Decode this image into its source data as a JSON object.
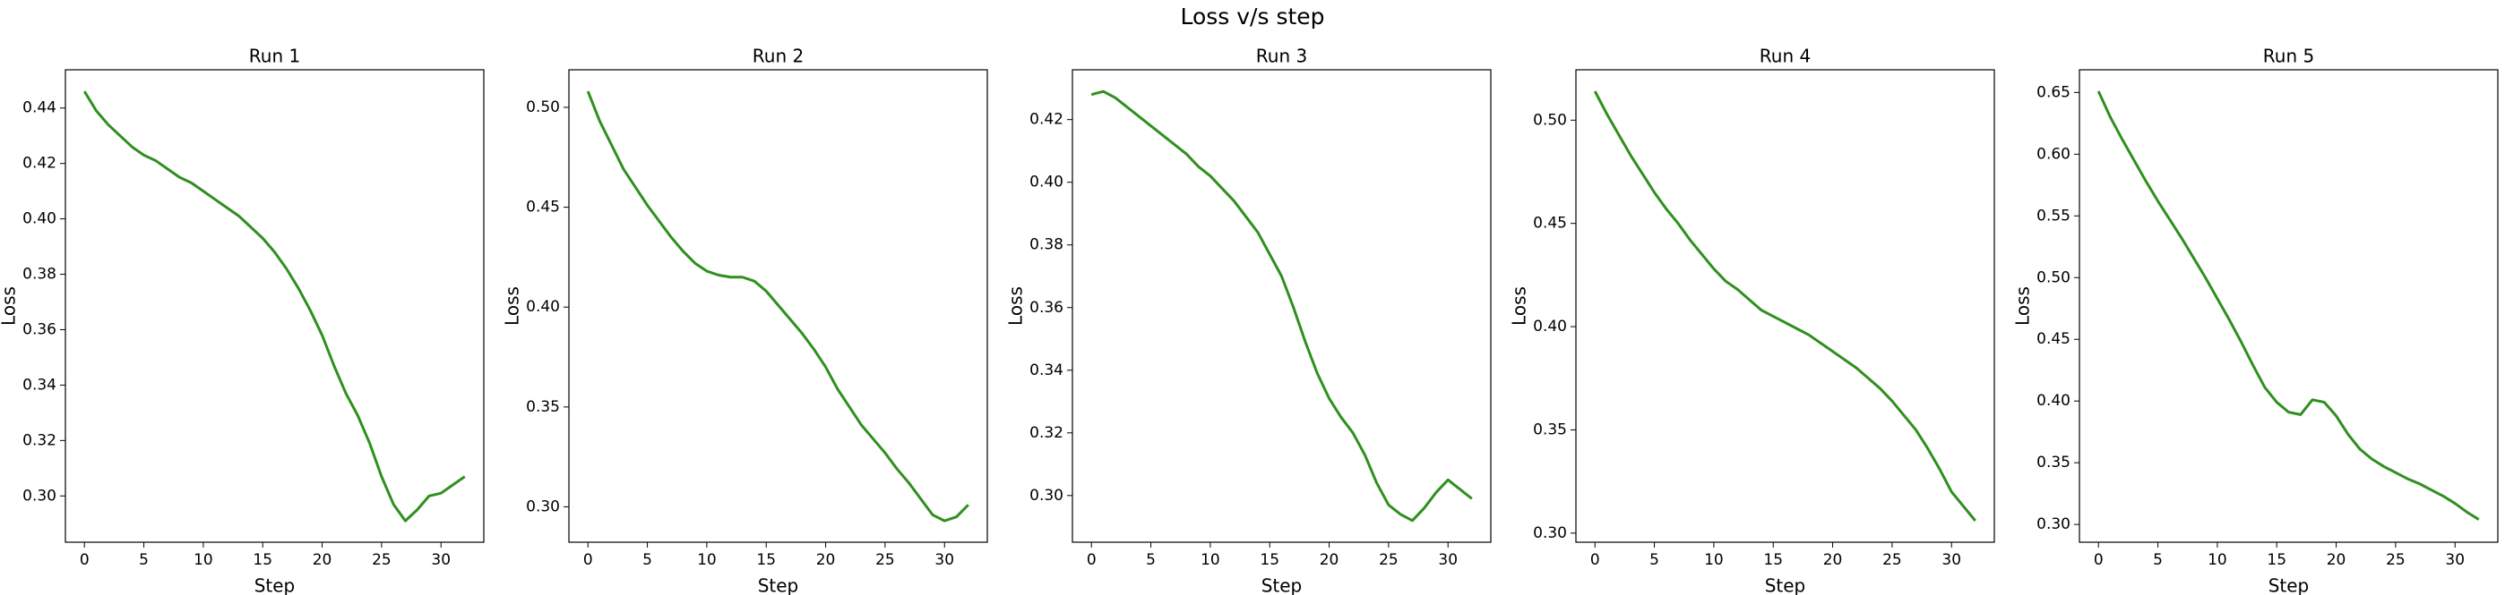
{
  "title": "Loss v/s step",
  "chart_data": [
    {
      "type": "line",
      "title": "Run 1",
      "xlabel": "Step",
      "ylabel": "Loss",
      "x": [
        0,
        1,
        2,
        3,
        4,
        5,
        6,
        7,
        8,
        9,
        10,
        11,
        12,
        13,
        14,
        15,
        16,
        17,
        18,
        19,
        20,
        21,
        22,
        23,
        24,
        25,
        26,
        27,
        28,
        29,
        30,
        31,
        32
      ],
      "series": [
        {
          "color": "#2f8f1f",
          "values": [
            0.446,
            0.439,
            0.434,
            0.43,
            0.426,
            0.423,
            0.421,
            0.418,
            0.415,
            0.413,
            0.41,
            0.407,
            0.404,
            0.401,
            0.397,
            0.393,
            0.388,
            0.382,
            0.375,
            0.367,
            0.358,
            0.347,
            0.337,
            0.329,
            0.319,
            0.307,
            0.297,
            0.291,
            0.295,
            0.3,
            0.301,
            0.304,
            0.307
          ]
        }
      ],
      "xlim": [
        -1.6,
        33.6
      ],
      "xticks": [
        0,
        5,
        10,
        15,
        20,
        25,
        30
      ],
      "ylim": [
        0.2833,
        0.4538
      ],
      "yticks": [
        {
          "value": 0.3,
          "label": "0.30"
        },
        0.32,
        0.34,
        0.36,
        0.38,
        {
          "value": 0.4,
          "label": "0.40"
        },
        0.42,
        0.44
      ]
    },
    {
      "type": "line",
      "title": "Run 2",
      "xlabel": "Step",
      "ylabel": "Loss",
      "x": [
        0,
        1,
        2,
        3,
        4,
        5,
        6,
        7,
        8,
        9,
        10,
        11,
        12,
        13,
        14,
        15,
        16,
        17,
        18,
        19,
        20,
        21,
        22,
        23,
        24,
        25,
        26,
        27,
        28,
        29,
        30,
        31,
        32
      ],
      "series": [
        {
          "color": "#2f8f1f",
          "values": [
            0.508,
            0.493,
            0.481,
            0.469,
            0.46,
            0.451,
            0.443,
            0.435,
            0.428,
            0.422,
            0.418,
            0.416,
            0.415,
            0.415,
            0.413,
            0.408,
            0.401,
            0.394,
            0.387,
            0.379,
            0.37,
            0.359,
            0.35,
            0.341,
            0.334,
            0.327,
            0.319,
            0.312,
            0.304,
            0.296,
            0.293,
            0.295,
            0.301
          ]
        }
      ],
      "xlim": [
        -1.6,
        33.6
      ],
      "xticks": [
        0,
        5,
        10,
        15,
        20,
        25,
        30
      ],
      "ylim": [
        0.2823,
        0.5188
      ],
      "yticks": [
        {
          "value": 0.3,
          "label": "0.30"
        },
        0.35,
        {
          "value": 0.4,
          "label": "0.40"
        },
        0.45,
        {
          "value": 0.5,
          "label": "0.50"
        }
      ]
    },
    {
      "type": "line",
      "title": "Run 3",
      "xlabel": "Step",
      "ylabel": "Loss",
      "x": [
        0,
        1,
        2,
        3,
        4,
        5,
        6,
        7,
        8,
        9,
        10,
        11,
        12,
        13,
        14,
        15,
        16,
        17,
        18,
        19,
        20,
        21,
        22,
        23,
        24,
        25,
        26,
        27,
        28,
        29,
        30,
        31,
        32
      ],
      "series": [
        {
          "color": "#2f8f1f",
          "values": [
            0.428,
            0.429,
            0.427,
            0.424,
            0.421,
            0.418,
            0.415,
            0.412,
            0.409,
            0.405,
            0.402,
            0.398,
            0.394,
            0.389,
            0.384,
            0.377,
            0.37,
            0.36,
            0.349,
            0.339,
            0.331,
            0.325,
            0.32,
            0.313,
            0.304,
            0.297,
            0.294,
            0.292,
            0.296,
            0.301,
            0.305,
            0.302,
            0.299
          ]
        }
      ],
      "xlim": [
        -1.6,
        33.6
      ],
      "xticks": [
        0,
        5,
        10,
        15,
        20,
        25,
        30
      ],
      "ylim": [
        0.2851,
        0.4359
      ],
      "yticks": [
        {
          "value": 0.3,
          "label": "0.30"
        },
        0.32,
        0.34,
        0.36,
        0.38,
        {
          "value": 0.4,
          "label": "0.40"
        },
        0.42
      ]
    },
    {
      "type": "line",
      "title": "Run 4",
      "xlabel": "Step",
      "ylabel": "Loss",
      "x": [
        0,
        1,
        2,
        3,
        4,
        5,
        6,
        7,
        8,
        9,
        10,
        11,
        12,
        13,
        14,
        15,
        16,
        17,
        18,
        19,
        20,
        21,
        22,
        23,
        24,
        25,
        26,
        27,
        28,
        29,
        30,
        31,
        32
      ],
      "series": [
        {
          "color": "#2f8f1f",
          "values": [
            0.514,
            0.503,
            0.493,
            0.483,
            0.474,
            0.465,
            0.457,
            0.45,
            0.442,
            0.435,
            0.428,
            0.422,
            0.418,
            0.413,
            0.408,
            0.405,
            0.402,
            0.399,
            0.396,
            0.392,
            0.388,
            0.384,
            0.38,
            0.375,
            0.37,
            0.364,
            0.357,
            0.35,
            0.341,
            0.331,
            0.32,
            0.313,
            0.306
          ]
        }
      ],
      "xlim": [
        -1.6,
        33.6
      ],
      "xticks": [
        0,
        5,
        10,
        15,
        20,
        25,
        30
      ],
      "ylim": [
        0.2956,
        0.5244
      ],
      "yticks": [
        {
          "value": 0.3,
          "label": "0.30"
        },
        0.35,
        {
          "value": 0.4,
          "label": "0.40"
        },
        0.45,
        {
          "value": 0.5,
          "label": "0.50"
        }
      ]
    },
    {
      "type": "line",
      "title": "Run 5",
      "xlabel": "Step",
      "ylabel": "Loss",
      "x": [
        0,
        1,
        2,
        3,
        4,
        5,
        6,
        7,
        8,
        9,
        10,
        11,
        12,
        13,
        14,
        15,
        16,
        17,
        18,
        19,
        20,
        21,
        22,
        23,
        24,
        25,
        26,
        27,
        28,
        29,
        30,
        31,
        32
      ],
      "series": [
        {
          "color": "#2f8f1f",
          "values": [
            0.651,
            0.63,
            0.612,
            0.595,
            0.578,
            0.562,
            0.547,
            0.532,
            0.516,
            0.5,
            0.483,
            0.466,
            0.448,
            0.429,
            0.411,
            0.399,
            0.391,
            0.389,
            0.401,
            0.399,
            0.388,
            0.373,
            0.361,
            0.353,
            0.347,
            0.342,
            0.337,
            0.333,
            0.328,
            0.323,
            0.317,
            0.31,
            0.304
          ]
        }
      ],
      "xlim": [
        -1.6,
        33.6
      ],
      "xticks": [
        0,
        5,
        10,
        15,
        20,
        25,
        30
      ],
      "ylim": [
        0.2856,
        0.6684
      ],
      "yticks": [
        {
          "value": 0.3,
          "label": "0.30"
        },
        0.35,
        {
          "value": 0.4,
          "label": "0.40"
        },
        0.45,
        {
          "value": 0.5,
          "label": "0.50"
        },
        0.55,
        {
          "value": 0.6,
          "label": "0.60"
        },
        0.65
      ]
    }
  ]
}
